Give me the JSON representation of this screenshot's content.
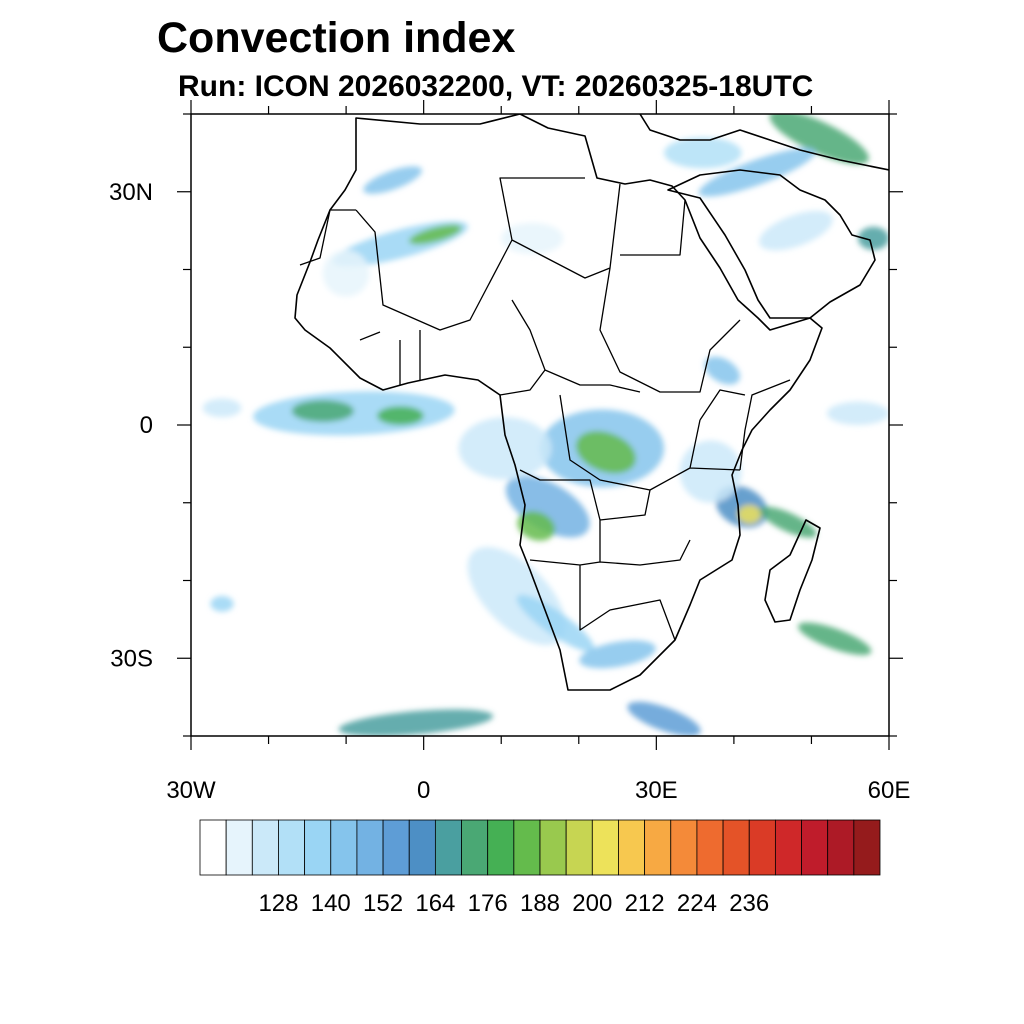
{
  "title": "Convection index",
  "subtitle": "Run: ICON 2026032200,  VT: 20260325-18UTC",
  "map": {
    "lon_range": [
      -30,
      60
    ],
    "lat_range": [
      -40,
      40
    ],
    "lat_ticks": [
      {
        "value": 30,
        "label": "30N"
      },
      {
        "value": 0,
        "label": "0"
      },
      {
        "value": -30,
        "label": "30S"
      }
    ],
    "lon_ticks": [
      {
        "value": -30,
        "label": "30W"
      },
      {
        "value": 0,
        "label": "0"
      },
      {
        "value": 30,
        "label": "30E"
      },
      {
        "value": 60,
        "label": "60E"
      }
    ]
  },
  "colorbar": {
    "colors": [
      "#ffffff",
      "#e6f4fc",
      "#cbe9f9",
      "#b2e0f7",
      "#9ad5f4",
      "#85c4ec",
      "#73b2e3",
      "#5e9dd6",
      "#4d8fc5",
      "#4a9fa0",
      "#4aa874",
      "#45b054",
      "#64bb4c",
      "#99c94e",
      "#c7d552",
      "#ede25a",
      "#f7c84f",
      "#f7a943",
      "#f48a39",
      "#ee6b2f",
      "#e45328",
      "#da3b26",
      "#cf2829",
      "#bf1c2b",
      "#ad1a26",
      "#951b1c"
    ],
    "labels": [
      "128",
      "140",
      "152",
      "164",
      "176",
      "188",
      "200",
      "212",
      "224",
      "236"
    ]
  },
  "blobs": [
    {
      "lon": -3,
      "lat": 23.3,
      "rx": 9,
      "ry": 1.8,
      "rot": -15,
      "lv": 4
    },
    {
      "lon": 1.5,
      "lat": 24.5,
      "rx": 3.5,
      "ry": 0.9,
      "rot": -15,
      "lv": 12
    },
    {
      "lon": -10,
      "lat": 19.5,
      "rx": 3,
      "ry": 3,
      "rot": 0,
      "lv": 1
    },
    {
      "lon": -4,
      "lat": 31.5,
      "rx": 4,
      "ry": 1.2,
      "rot": -20,
      "lv": 5
    },
    {
      "lon": -9,
      "lat": 1.5,
      "rx": 13,
      "ry": 2.8,
      "rot": -2,
      "lv": 4
    },
    {
      "lon": -13,
      "lat": 1.8,
      "rx": 4,
      "ry": 1.4,
      "rot": 0,
      "lv": 10
    },
    {
      "lon": -3,
      "lat": 1.2,
      "rx": 3,
      "ry": 1.2,
      "rot": 0,
      "lv": 11
    },
    {
      "lon": -26,
      "lat": 2.2,
      "rx": 2.5,
      "ry": 1.2,
      "rot": 0,
      "lv": 2
    },
    {
      "lon": 23,
      "lat": -3,
      "rx": 8,
      "ry": 5,
      "rot": 0,
      "lv": 5
    },
    {
      "lon": 23.5,
      "lat": -3.5,
      "rx": 4,
      "ry": 2.5,
      "rot": 20,
      "lv": 12
    },
    {
      "lon": 16,
      "lat": -10.5,
      "rx": 6,
      "ry": 3,
      "rot": 30,
      "lv": 6
    },
    {
      "lon": 14.5,
      "lat": -13,
      "rx": 2.5,
      "ry": 1.8,
      "rot": 20,
      "lv": 12
    },
    {
      "lon": 10.5,
      "lat": -3,
      "rx": 6,
      "ry": 4,
      "rot": 0,
      "lv": 2
    },
    {
      "lon": 12,
      "lat": -22,
      "rx": 8,
      "ry": 4,
      "rot": 45,
      "lv": 2
    },
    {
      "lon": 17,
      "lat": -25.5,
      "rx": 6,
      "ry": 1.5,
      "rot": 35,
      "lv": 4
    },
    {
      "lon": 25,
      "lat": -29.5,
      "rx": 5,
      "ry": 1.6,
      "rot": -10,
      "lv": 5
    },
    {
      "lon": 41,
      "lat": -10.5,
      "rx": 3.5,
      "ry": 2.5,
      "rot": 25,
      "lv": 8
    },
    {
      "lon": 42,
      "lat": -11.5,
      "rx": 1.5,
      "ry": 1.2,
      "rot": 0,
      "lv": 15
    },
    {
      "lon": 47,
      "lat": -12.5,
      "rx": 4,
      "ry": 1.2,
      "rot": 25,
      "lv": 10
    },
    {
      "lon": 37,
      "lat": -6,
      "rx": 4,
      "ry": 4,
      "rot": 0,
      "lv": 2
    },
    {
      "lon": 53,
      "lat": -27.5,
      "rx": 5,
      "ry": 1.3,
      "rot": 20,
      "lv": 10
    },
    {
      "lon": -26,
      "lat": -23,
      "rx": 1.5,
      "ry": 1,
      "rot": 0,
      "lv": 4
    },
    {
      "lon": -1,
      "lat": -38.3,
      "rx": 10,
      "ry": 1.5,
      "rot": -5,
      "lv": 9
    },
    {
      "lon": 31,
      "lat": -37.8,
      "rx": 5,
      "ry": 1.5,
      "rot": 20,
      "lv": 7
    },
    {
      "lon": 51,
      "lat": 37,
      "rx": 7,
      "ry": 2,
      "rot": 25,
      "lv": 10
    },
    {
      "lon": 43,
      "lat": 32.5,
      "rx": 8,
      "ry": 1.6,
      "rot": -20,
      "lv": 5
    },
    {
      "lon": 36,
      "lat": 35,
      "rx": 5,
      "ry": 2,
      "rot": 0,
      "lv": 3
    },
    {
      "lon": 48,
      "lat": 25,
      "rx": 5,
      "ry": 2,
      "rot": -20,
      "lv": 2
    },
    {
      "lon": 58,
      "lat": 24,
      "rx": 2,
      "ry": 1.5,
      "rot": 0,
      "lv": 9
    },
    {
      "lon": 38.5,
      "lat": 7,
      "rx": 2.5,
      "ry": 1.5,
      "rot": 30,
      "lv": 5
    },
    {
      "lon": 14,
      "lat": 24,
      "rx": 4,
      "ry": 2,
      "rot": 0,
      "lv": 1
    },
    {
      "lon": 56,
      "lat": 1.5,
      "rx": 4,
      "ry": 1.5,
      "rot": 0,
      "lv": 2
    }
  ]
}
